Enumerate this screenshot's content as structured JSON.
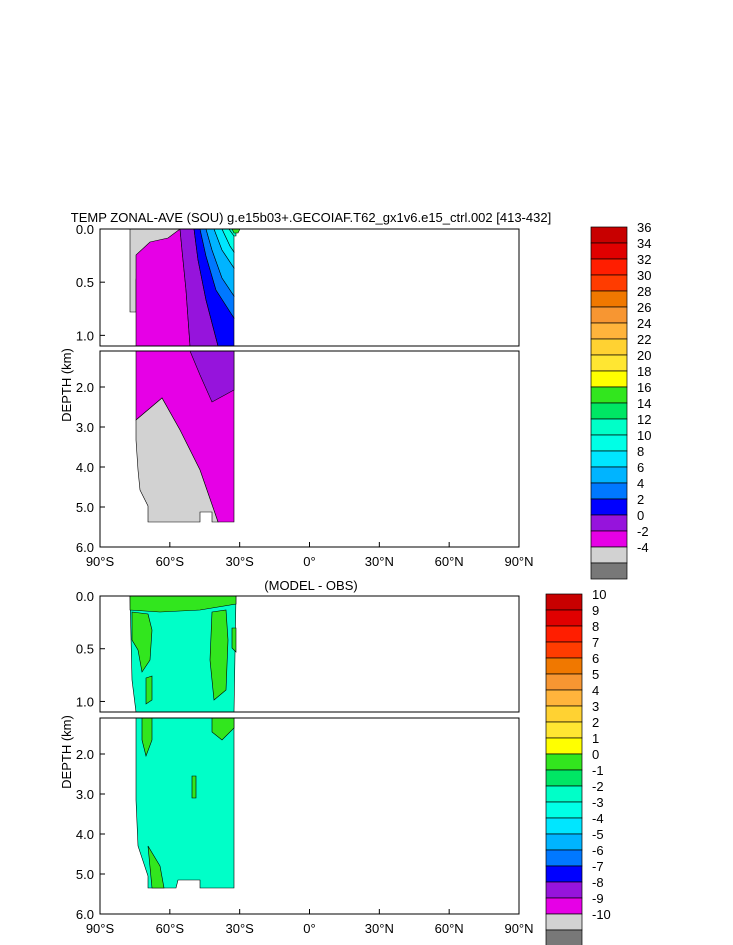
{
  "chart_data": [
    {
      "type": "contour",
      "title": "TEMP ZONAL-AVE (SOU) g.e15b03+.GECOIAF.T62_gx1v6.e15_ctrl.002 [413-432]",
      "xlabel": "",
      "ylabel": "DEPTH (km)",
      "x_ticks": [
        "90°S",
        "60°S",
        "30°S",
        "0°",
        "30°N",
        "60°N",
        "90°N"
      ],
      "x_tick_values": [
        -90,
        -60,
        -30,
        0,
        30,
        60,
        90
      ],
      "y_ticks_upper": [
        "0.0",
        "0.5",
        "1.0"
      ],
      "y_ticks_lower": [
        "2.0",
        "3.0",
        "4.0",
        "5.0",
        "6.0"
      ],
      "xlim": [
        -90,
        90
      ],
      "ylim_upper_km": [
        0.0,
        1.1
      ],
      "ylim_lower_km": [
        1.1,
        6.0
      ],
      "colorbar_labels": [
        "36",
        "34",
        "32",
        "30",
        "28",
        "26",
        "24",
        "22",
        "20",
        "18",
        "16",
        "14",
        "12",
        "10",
        "8",
        "6",
        "4",
        "2",
        "0",
        "-2",
        "-4"
      ],
      "colorbar_colors": [
        "#c80000",
        "#e00000",
        "#ff1e00",
        "#ff3c00",
        "#f07800",
        "#f79632",
        "#ffb43c",
        "#ffd232",
        "#ffe632",
        "#ffff00",
        "#32e61e",
        "#00e664",
        "#00ffc8",
        "#00ffe6",
        "#00e6ff",
        "#00b4ff",
        "#0078ff",
        "#0000ff",
        "#9614dc",
        "#e600e6",
        "#d2d2d2",
        "#787878"
      ]
    },
    {
      "type": "contour",
      "title": "(MODEL - OBS)",
      "xlabel": "",
      "ylabel": "DEPTH (km)",
      "x_ticks": [
        "90°S",
        "60°S",
        "30°S",
        "0°",
        "30°N",
        "60°N",
        "90°N"
      ],
      "x_tick_values": [
        -90,
        -60,
        -30,
        0,
        30,
        60,
        90
      ],
      "y_ticks_upper": [
        "0.0",
        "0.5",
        "1.0"
      ],
      "y_ticks_lower": [
        "2.0",
        "3.0",
        "4.0",
        "5.0",
        "6.0"
      ],
      "xlim": [
        -90,
        90
      ],
      "ylim_upper_km": [
        0.0,
        1.1
      ],
      "ylim_lower_km": [
        1.1,
        6.0
      ],
      "colorbar_labels": [
        "10",
        "9",
        "8",
        "7",
        "6",
        "5",
        "4",
        "3",
        "2",
        "1",
        "0",
        "-1",
        "-2",
        "-3",
        "-4",
        "-5",
        "-6",
        "-7",
        "-8",
        "-9",
        "-10"
      ],
      "colorbar_colors": [
        "#c80000",
        "#e00000",
        "#ff1e00",
        "#ff3c00",
        "#f07800",
        "#f79632",
        "#ffb43c",
        "#ffd232",
        "#ffe632",
        "#ffff00",
        "#32e61e",
        "#00e664",
        "#00ffc8",
        "#00ffe6",
        "#00e6ff",
        "#00b4ff",
        "#0078ff",
        "#0000ff",
        "#9614dc",
        "#e600e6",
        "#d2d2d2",
        "#787878"
      ]
    }
  ]
}
